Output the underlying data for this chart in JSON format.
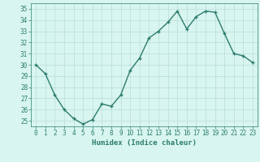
{
  "title": "",
  "xlabel": "Humidex (Indice chaleur)",
  "ylabel": "",
  "x": [
    0,
    1,
    2,
    3,
    4,
    5,
    6,
    7,
    8,
    9,
    10,
    11,
    12,
    13,
    14,
    15,
    16,
    17,
    18,
    19,
    20,
    21,
    22,
    23
  ],
  "y": [
    30.0,
    29.2,
    27.3,
    26.0,
    25.2,
    24.7,
    25.1,
    26.5,
    26.3,
    27.3,
    29.5,
    30.6,
    32.4,
    33.0,
    33.8,
    34.8,
    33.2,
    34.3,
    34.8,
    34.7,
    32.8,
    31.0,
    30.8,
    30.2
  ],
  "line_color": "#2e7d6e",
  "marker": "+",
  "marker_size": 3,
  "marker_linewidth": 1.0,
  "background_color": "#d8f5f0",
  "grid_color": "#b8ddd8",
  "ylim": [
    24.5,
    35.5
  ],
  "yticks": [
    25,
    26,
    27,
    28,
    29,
    30,
    31,
    32,
    33,
    34,
    35
  ],
  "xticks": [
    0,
    1,
    2,
    3,
    4,
    5,
    6,
    7,
    8,
    9,
    10,
    11,
    12,
    13,
    14,
    15,
    16,
    17,
    18,
    19,
    20,
    21,
    22,
    23
  ],
  "tick_fontsize": 5.5,
  "xlabel_fontsize": 6.5,
  "line_width": 1.0,
  "spine_color": "#2e7d6e"
}
